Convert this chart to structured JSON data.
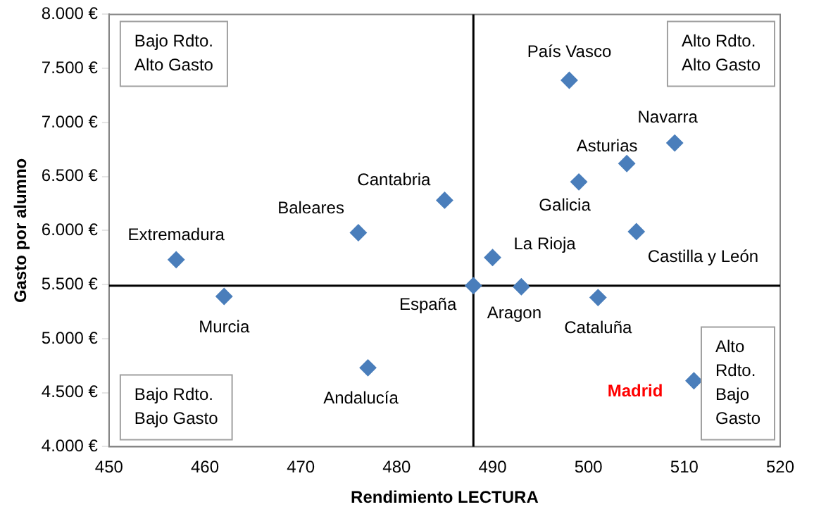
{
  "chart_data": {
    "type": "scatter",
    "xlabel": "Rendimiento LECTURA",
    "ylabel": "Gasto por alumno",
    "x": [
      457,
      462,
      476,
      477,
      485,
      498,
      509,
      504,
      499,
      505,
      490,
      488,
      493,
      501,
      511
    ],
    "series": [
      {
        "color": "#4a7ebb",
        "values": [
          5730,
          5390,
          5980,
          4730,
          6280,
          7390,
          6810,
          6620,
          6450,
          5990,
          5750,
          5490,
          5480,
          5380,
          4610
        ]
      }
    ],
    "xlim": [
      450,
      520
    ],
    "xticks": [
      450,
      460,
      470,
      480,
      490,
      500,
      510,
      520
    ],
    "ylim": [
      4000,
      8000
    ],
    "yticks": [
      {
        "value": 4000,
        "label": "4.000 €"
      },
      {
        "value": 4500,
        "label": "4.500 €"
      },
      {
        "value": 5000,
        "label": "5.000 €"
      },
      {
        "value": 5500,
        "label": "5.500 €"
      },
      {
        "value": 6000,
        "label": "6.000 €"
      },
      {
        "value": 6500,
        "label": "6.500 €"
      },
      {
        "value": 7000,
        "label": "7.000 €"
      },
      {
        "value": 7500,
        "label": "7.500 €"
      },
      {
        "value": 8000,
        "label": "8.000 €"
      }
    ],
    "ref_lines": [
      {
        "axis": "x",
        "value": 488,
        "color": "#000000"
      },
      {
        "axis": "y",
        "value": 5490,
        "color": "#000000"
      }
    ],
    "annotations": [
      {
        "text": "Extremadura",
        "x": 457,
        "y": 5730
      },
      {
        "text": "Murcia",
        "x": 462,
        "y": 5390
      },
      {
        "text": "Baleares",
        "x": 476,
        "y": 5980
      },
      {
        "text": "Andalucía",
        "x": 477,
        "y": 4730
      },
      {
        "text": "Cantabria",
        "x": 485,
        "y": 6280
      },
      {
        "text": "País Vasco",
        "x": 498,
        "y": 7390
      },
      {
        "text": "Navarra",
        "x": 509,
        "y": 6810
      },
      {
        "text": "Asturias",
        "x": 504,
        "y": 6620
      },
      {
        "text": "Galicia",
        "x": 499,
        "y": 6450
      },
      {
        "text": "Castilla y León",
        "x": 505,
        "y": 5990
      },
      {
        "text": "La Rioja",
        "x": 490,
        "y": 5750
      },
      {
        "text": "España",
        "x": 488,
        "y": 5490
      },
      {
        "text": "Aragon",
        "x": 493,
        "y": 5480
      },
      {
        "text": "Cataluña",
        "x": 501,
        "y": 5380
      },
      {
        "text": "Madrid",
        "x": 511,
        "y": 4610
      },
      "Bajo Rdto. Alto Gasto",
      "Alto Rdto. Alto Gasto",
      "Bajo Rdto. Bajo Gasto",
      "Alto Rdto. Bajo Gasto"
    ],
    "marker": "diamond",
    "grid": false,
    "legend": false
  }
}
